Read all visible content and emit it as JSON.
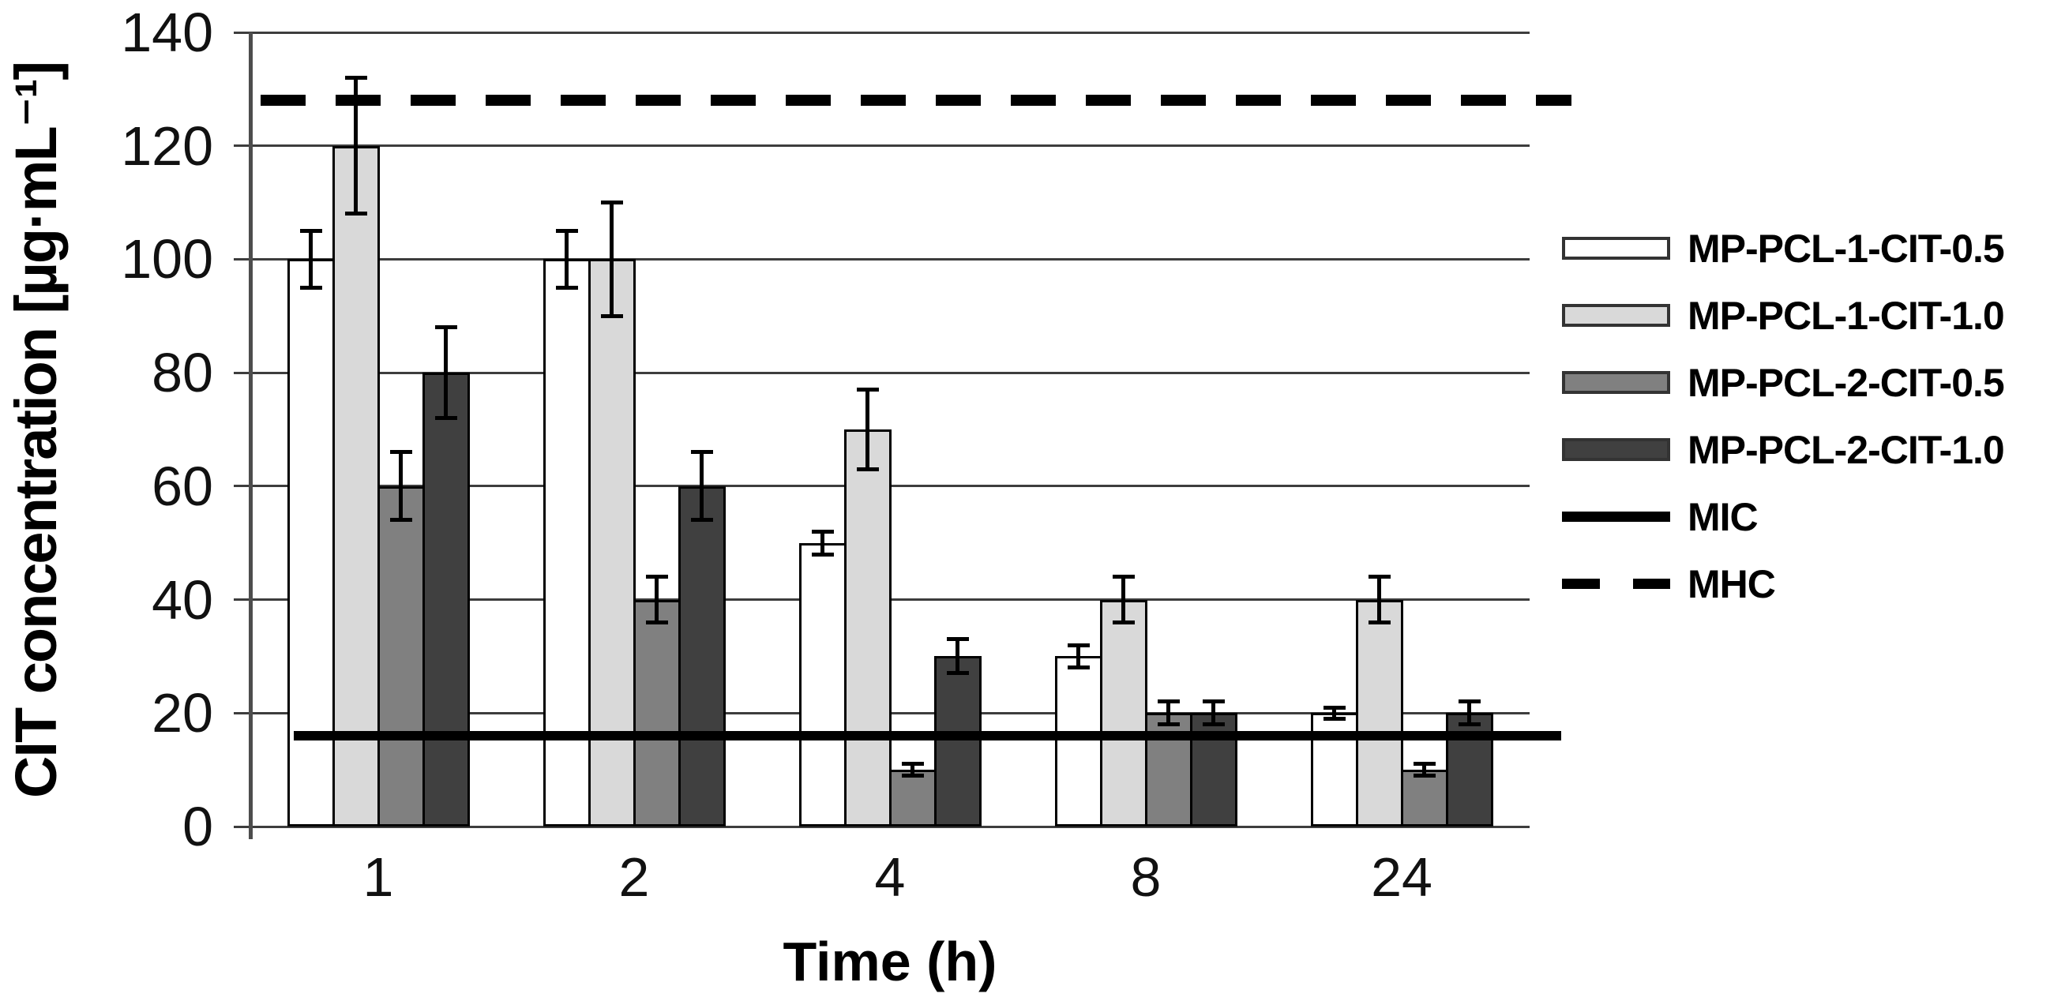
{
  "chart_data": {
    "type": "bar",
    "title": "",
    "xlabel": "Time (h)",
    "ylabel": "CIT concentration [µg·mL⁻¹]",
    "categories": [
      "1",
      "2",
      "4",
      "8",
      "24"
    ],
    "series": [
      {
        "name": "MP-PCL-1-CIT-0.5",
        "color": "#ffffff",
        "values": [
          100,
          100,
          50,
          30,
          20
        ],
        "errors": [
          5,
          5,
          2,
          2,
          1
        ]
      },
      {
        "name": "MP-PCL-1-CIT-1.0",
        "color": "#d9d9d9",
        "values": [
          120,
          100,
          70,
          40,
          40
        ],
        "errors": [
          12,
          10,
          7,
          4,
          4
        ]
      },
      {
        "name": "MP-PCL-2-CIT-0.5",
        "color": "#808080",
        "values": [
          60,
          40,
          10,
          20,
          10
        ],
        "errors": [
          6,
          4,
          1,
          2,
          1
        ]
      },
      {
        "name": "MP-PCL-2-CIT-1.0",
        "color": "#404040",
        "values": [
          80,
          60,
          30,
          20,
          20
        ],
        "errors": [
          8,
          6,
          3,
          2,
          2
        ]
      }
    ],
    "lines": [
      {
        "name": "MIC",
        "value": 16,
        "style": "solid",
        "color": "#000000"
      },
      {
        "name": "MHC",
        "value": 128,
        "style": "dashed",
        "color": "#000000"
      }
    ],
    "ylim": [
      0,
      140
    ],
    "ytick_step": 20,
    "yticks": [
      0,
      20,
      40,
      60,
      80,
      100,
      120,
      140
    ],
    "grid": true,
    "legend_position": "right",
    "error_bars": true
  }
}
